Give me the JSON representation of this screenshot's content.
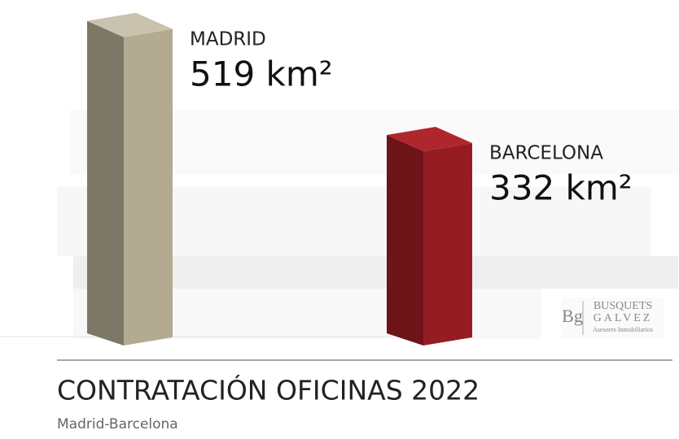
{
  "chart_data": {
    "type": "bar3d",
    "title": "CONTRATACIÓN OFICINAS 2022",
    "subtitle": "Madrid-Barcelona",
    "categories": [
      "MADRID",
      "BARCELONA"
    ],
    "values": [
      519,
      332
    ],
    "value_labels": [
      "519 km²",
      "332 km²"
    ],
    "colors": [
      "#b2aa91",
      "#961c24"
    ],
    "side_colors": [
      "#7d7866",
      "#6c1418"
    ],
    "top_colors": [
      "#c8c2ae",
      "#b0262f"
    ],
    "ylim": [
      0,
      540
    ],
    "logo": {
      "mark": "Bg",
      "line1": "BUSQUETS",
      "line2": "GALVEZ",
      "line3": "Asesores Inmobiliarios"
    }
  }
}
